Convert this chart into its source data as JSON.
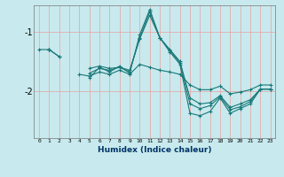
{
  "xlabel": "Humidex (Indice chaleur)",
  "bg_color": "#c8eaee",
  "line_color": "#1a7878",
  "grid_color": "#e8a0a0",
  "xlim": [
    -0.5,
    23.5
  ],
  "ylim": [
    -2.8,
    -0.55
  ],
  "yticks": [
    -2.0,
    -1.0
  ],
  "xticks": [
    0,
    1,
    2,
    3,
    4,
    5,
    6,
    7,
    8,
    9,
    10,
    11,
    12,
    13,
    14,
    15,
    16,
    17,
    18,
    19,
    20,
    21,
    22,
    23
  ],
  "series": [
    [
      null,
      -1.3,
      null,
      null,
      null,
      -1.62,
      -1.58,
      -1.62,
      -1.6,
      -1.65,
      -1.12,
      -0.72,
      -1.1,
      -1.3,
      -1.5,
      -2.12,
      -2.22,
      -2.2,
      -2.08,
      -2.28,
      -2.22,
      -2.15,
      -1.97,
      -1.97
    ],
    [
      null,
      -1.3,
      null,
      null,
      null,
      -1.78,
      -1.6,
      -1.68,
      -1.58,
      -1.7,
      -1.05,
      -0.62,
      -1.1,
      -1.34,
      -1.55,
      -2.38,
      -2.42,
      -2.35,
      -2.12,
      -2.38,
      -2.3,
      -2.22,
      -1.97,
      -1.97
    ],
    [
      null,
      -1.3,
      -1.42,
      null,
      null,
      -1.7,
      -1.62,
      -1.65,
      -1.6,
      -1.68,
      -1.1,
      -0.66,
      -1.1,
      -1.32,
      -1.52,
      -2.22,
      -2.3,
      -2.25,
      -2.1,
      -2.32,
      -2.27,
      -2.18,
      -1.97,
      -1.97
    ],
    [
      -1.3,
      -1.3,
      -1.42,
      null,
      -1.72,
      -1.75,
      -1.68,
      -1.72,
      -1.65,
      -1.72,
      -1.55,
      -1.6,
      -1.65,
      -1.68,
      -1.72,
      -1.9,
      -1.98,
      -1.98,
      -1.92,
      -2.05,
      -2.02,
      -1.98,
      -1.9,
      -1.9
    ]
  ]
}
